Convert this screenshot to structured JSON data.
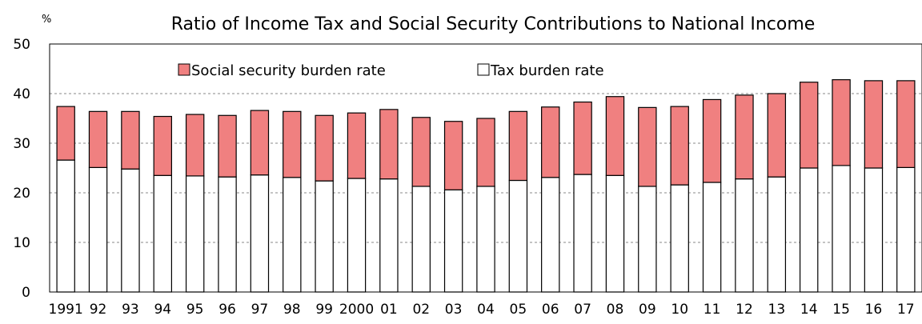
{
  "chart_data": {
    "type": "bar",
    "stacked": true,
    "title": "Ratio of Income Tax and Social Security Contributions to National Income",
    "y_unit": "%",
    "xlabel": "",
    "ylabel": "",
    "ylim": [
      0,
      50
    ],
    "yticks": [
      0,
      10,
      20,
      30,
      40,
      50
    ],
    "grid": "horizontal dashed",
    "legend_position": "top",
    "categories": [
      "1991",
      "92",
      "93",
      "94",
      "95",
      "96",
      "97",
      "98",
      "99",
      "2000",
      "01",
      "02",
      "03",
      "04",
      "05",
      "06",
      "07",
      "08",
      "09",
      "10",
      "11",
      "12",
      "13",
      "14",
      "15",
      "16",
      "17"
    ],
    "series": [
      {
        "name": "Tax burden rate",
        "color": "#ffffff",
        "values": [
          26.6,
          25.1,
          24.8,
          23.5,
          23.4,
          23.2,
          23.6,
          23.1,
          22.4,
          22.9,
          22.8,
          21.3,
          20.6,
          21.3,
          22.5,
          23.1,
          23.7,
          23.5,
          21.3,
          21.6,
          22.1,
          22.8,
          23.2,
          25.0,
          25.5,
          25.0,
          25.1
        ]
      },
      {
        "name": "Social security burden rate",
        "color": "#f08080",
        "values": [
          10.8,
          11.3,
          11.6,
          11.9,
          12.4,
          12.4,
          13.0,
          13.3,
          13.2,
          13.2,
          14.0,
          13.9,
          13.8,
          13.7,
          13.9,
          14.2,
          14.6,
          15.9,
          15.9,
          15.8,
          16.7,
          16.9,
          16.8,
          17.3,
          17.3,
          17.6,
          17.5
        ]
      }
    ]
  }
}
